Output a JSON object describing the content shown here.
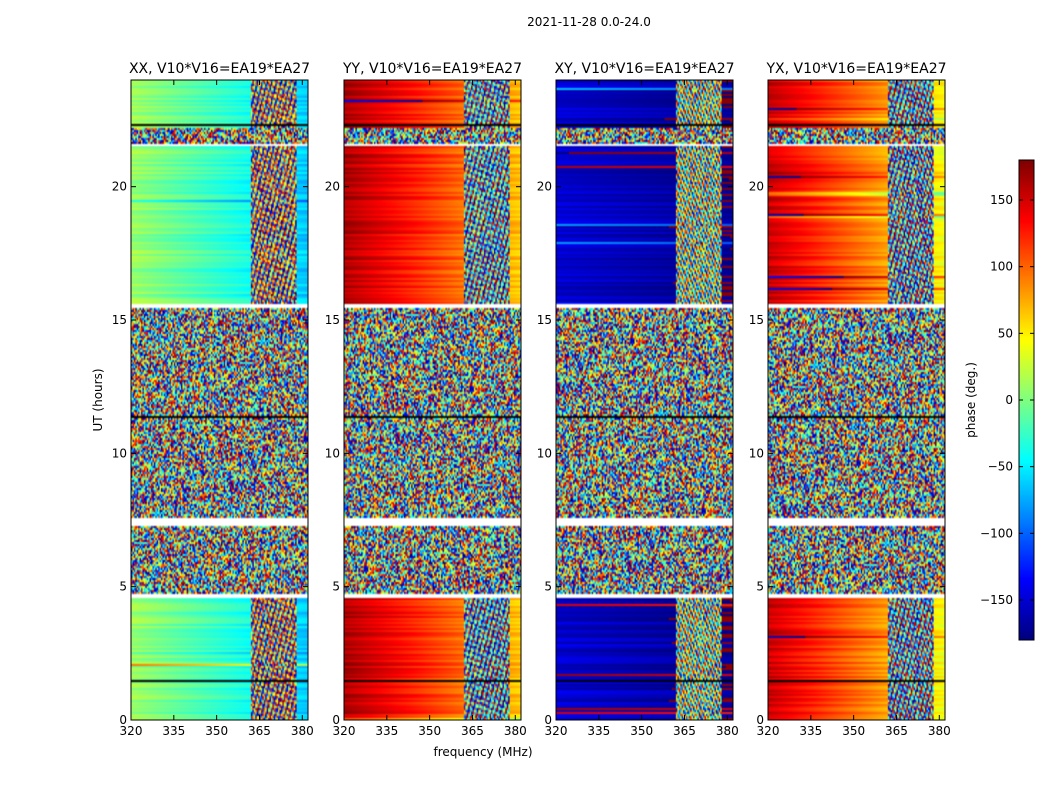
{
  "figure_title": "2021-11-28 0.0-24.0",
  "chart_data": {
    "type": "heatmap",
    "xlabel": "frequency (MHz)",
    "ylabel": "UT (hours)",
    "xlim": [
      320,
      382
    ],
    "ylim": [
      0,
      24
    ],
    "xticks": [
      320,
      335,
      350,
      365,
      380
    ],
    "yticks": [
      0,
      5,
      10,
      15,
      20
    ],
    "panels": [
      {
        "title": "XX, V10*V16=EA19*EA27",
        "base_phase_deg": 10,
        "slope_deg_per_mhz": -1.2
      },
      {
        "title": "YY, V10*V16=EA19*EA27",
        "base_phase_deg": 165,
        "slope_deg_per_mhz": -1.6
      },
      {
        "title": "XY, V10*V16=EA19*EA27",
        "base_phase_deg": -150,
        "slope_deg_per_mhz": -0.4
      },
      {
        "title": "YX, V10*V16=EA19*EA27",
        "base_phase_deg": 155,
        "slope_deg_per_mhz": -1.8
      }
    ],
    "colorbar": {
      "label": "phase (deg.)",
      "range": [
        -180,
        180
      ],
      "ticks": [
        -150,
        -100,
        -50,
        0,
        50,
        100,
        150
      ],
      "colormap": "jet"
    },
    "data_gaps_hours": [
      [
        4.6,
        4.72
      ],
      [
        7.28,
        7.55
      ],
      [
        15.48,
        15.62
      ],
      [
        21.52,
        21.62
      ]
    ],
    "dark_gaps_hours": [
      [
        11.3,
        11.42
      ],
      [
        1.45,
        1.52
      ],
      [
        22.3,
        22.35
      ]
    ],
    "noisy_ranges_hours": [
      [
        4.72,
        7.28
      ],
      [
        7.55,
        15.48
      ],
      [
        21.62,
        22.2
      ]
    ],
    "rfi_band_mhz": [
      362,
      378
    ]
  }
}
